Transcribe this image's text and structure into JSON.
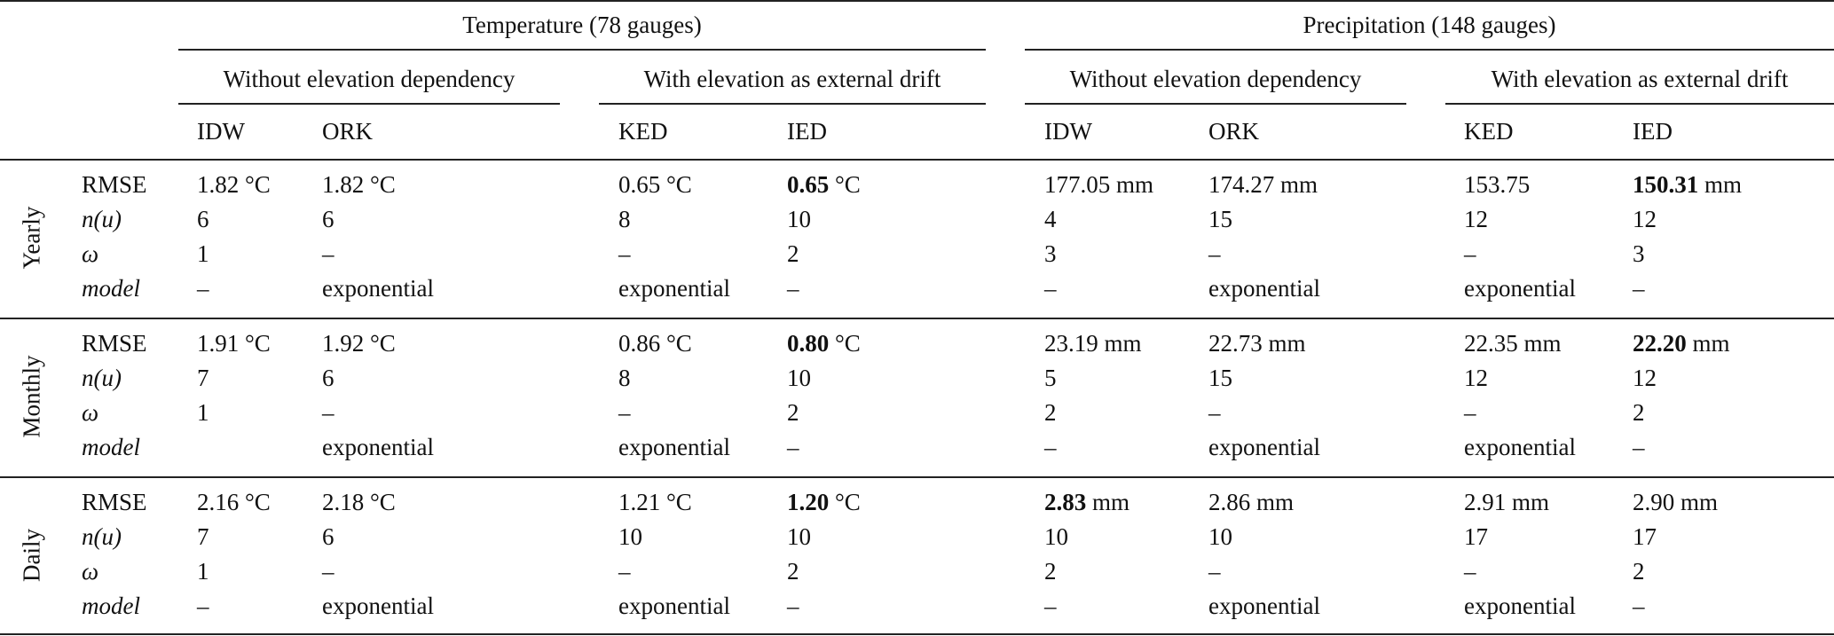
{
  "groups": [
    {
      "label": "Temperature (78 gauges)",
      "sub": [
        "Without elevation dependency",
        "With elevation as external drift"
      ]
    },
    {
      "label": "Precipitation (148 gauges)",
      "sub": [
        "Without elevation dependency",
        "With elevation as external drift"
      ]
    }
  ],
  "methods": [
    "IDW",
    "ORK",
    "KED",
    "IED",
    "IDW",
    "ORK",
    "KED",
    "IED"
  ],
  "row_labels": [
    "RMSE",
    "n(u)",
    "ω",
    "model"
  ],
  "sections": [
    {
      "name": "Yearly",
      "rows": [
        [
          {
            "v": "1.82",
            "u": " °C"
          },
          {
            "v": "1.82",
            "u": " °C"
          },
          {
            "v": "0.65",
            "u": " °C"
          },
          {
            "v": "0.65",
            "u": " °C",
            "bold": true
          },
          {
            "v": "177.05",
            "u": " mm"
          },
          {
            "v": "174.27",
            "u": " mm"
          },
          {
            "v": "153.75",
            "u": ""
          },
          {
            "v": "150.31",
            "u": " mm",
            "bold": true
          }
        ],
        [
          {
            "v": "6"
          },
          {
            "v": "6"
          },
          {
            "v": "8"
          },
          {
            "v": "10"
          },
          {
            "v": "4"
          },
          {
            "v": "15"
          },
          {
            "v": "12"
          },
          {
            "v": "12"
          }
        ],
        [
          {
            "v": "1"
          },
          {
            "v": "–"
          },
          {
            "v": "–"
          },
          {
            "v": "2"
          },
          {
            "v": "3"
          },
          {
            "v": "–"
          },
          {
            "v": "–"
          },
          {
            "v": "3"
          }
        ],
        [
          {
            "v": "–"
          },
          {
            "v": "exponential"
          },
          {
            "v": "exponential"
          },
          {
            "v": "–"
          },
          {
            "v": "–"
          },
          {
            "v": "exponential"
          },
          {
            "v": "exponential"
          },
          {
            "v": "–"
          }
        ]
      ]
    },
    {
      "name": "Monthly",
      "rows": [
        [
          {
            "v": "1.91",
            "u": " °C"
          },
          {
            "v": "1.92",
            "u": " °C"
          },
          {
            "v": "0.86",
            "u": " °C"
          },
          {
            "v": "0.80",
            "u": " °C",
            "bold": true
          },
          {
            "v": "23.19",
            "u": " mm"
          },
          {
            "v": "22.73",
            "u": " mm"
          },
          {
            "v": "22.35",
            "u": " mm"
          },
          {
            "v": "22.20",
            "u": " mm",
            "bold": true
          }
        ],
        [
          {
            "v": "7"
          },
          {
            "v": "6"
          },
          {
            "v": "8"
          },
          {
            "v": "10"
          },
          {
            "v": "5"
          },
          {
            "v": "15"
          },
          {
            "v": "12"
          },
          {
            "v": "12"
          }
        ],
        [
          {
            "v": "1"
          },
          {
            "v": "–"
          },
          {
            "v": "–"
          },
          {
            "v": "2"
          },
          {
            "v": "2"
          },
          {
            "v": "–"
          },
          {
            "v": "–"
          },
          {
            "v": "2"
          }
        ],
        [
          {
            "v": ""
          },
          {
            "v": "exponential"
          },
          {
            "v": "exponential"
          },
          {
            "v": "–"
          },
          {
            "v": "–"
          },
          {
            "v": "exponential"
          },
          {
            "v": "exponential"
          },
          {
            "v": "–"
          }
        ]
      ]
    },
    {
      "name": "Daily",
      "rows": [
        [
          {
            "v": "2.16",
            "u": " °C"
          },
          {
            "v": "2.18",
            "u": " °C"
          },
          {
            "v": "1.21",
            "u": " °C"
          },
          {
            "v": "1.20",
            "u": " °C",
            "bold": true
          },
          {
            "v": "2.83",
            "u": " mm",
            "bold": true
          },
          {
            "v": "2.86",
            "u": " mm"
          },
          {
            "v": "2.91",
            "u": " mm"
          },
          {
            "v": "2.90",
            "u": " mm"
          }
        ],
        [
          {
            "v": "7"
          },
          {
            "v": "6"
          },
          {
            "v": "10"
          },
          {
            "v": "10"
          },
          {
            "v": "10"
          },
          {
            "v": "10"
          },
          {
            "v": "17"
          },
          {
            "v": "17"
          }
        ],
        [
          {
            "v": "1"
          },
          {
            "v": "–"
          },
          {
            "v": "–"
          },
          {
            "v": "2"
          },
          {
            "v": "2"
          },
          {
            "v": "–"
          },
          {
            "v": "–"
          },
          {
            "v": "2"
          }
        ],
        [
          {
            "v": "–"
          },
          {
            "v": "exponential"
          },
          {
            "v": "exponential"
          },
          {
            "v": "–"
          },
          {
            "v": "–"
          },
          {
            "v": "exponential"
          },
          {
            "v": "exponential"
          },
          {
            "v": "–"
          }
        ]
      ]
    }
  ]
}
